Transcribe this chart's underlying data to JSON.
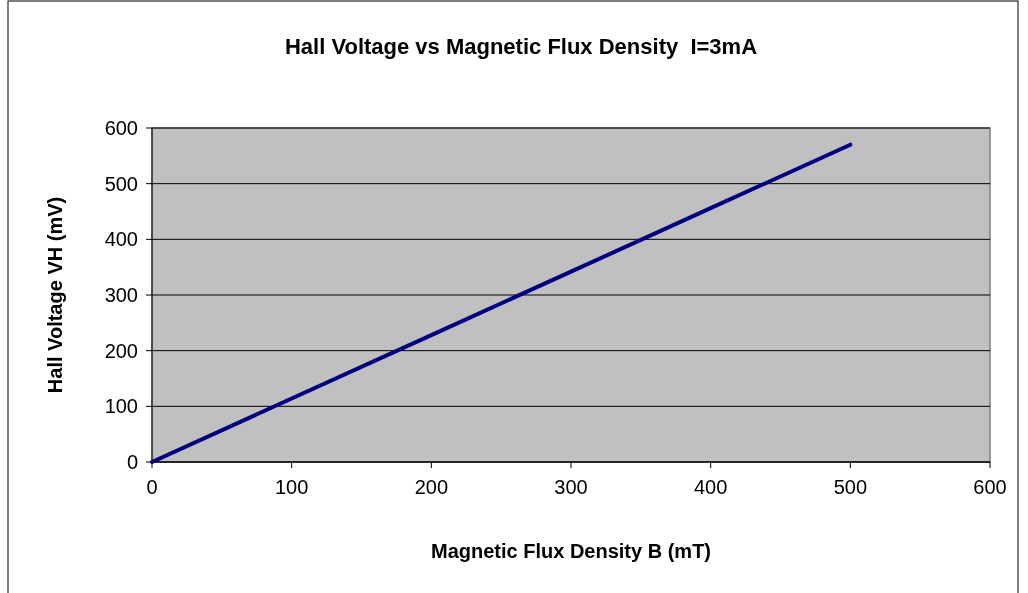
{
  "chart_data": {
    "type": "line",
    "title": "Hall Voltage vs Magnetic Flux Density  I=3mA",
    "xlabel": "Magnetic Flux Density B (mT)",
    "ylabel": "Hall Voltage VH (mV)",
    "x": [
      0,
      100,
      200,
      300,
      400,
      500
    ],
    "series": [
      {
        "color": "#000080",
        "values": [
          0,
          114,
          228,
          342,
          456,
          570
        ]
      }
    ],
    "xlim": [
      0,
      600
    ],
    "ylim": [
      0,
      600
    ],
    "xticks": [
      0,
      100,
      200,
      300,
      400,
      500,
      600
    ],
    "yticks": [
      0,
      100,
      200,
      300,
      400,
      500,
      600
    ],
    "grid": "y",
    "marker": "none",
    "line_style": "solid"
  }
}
